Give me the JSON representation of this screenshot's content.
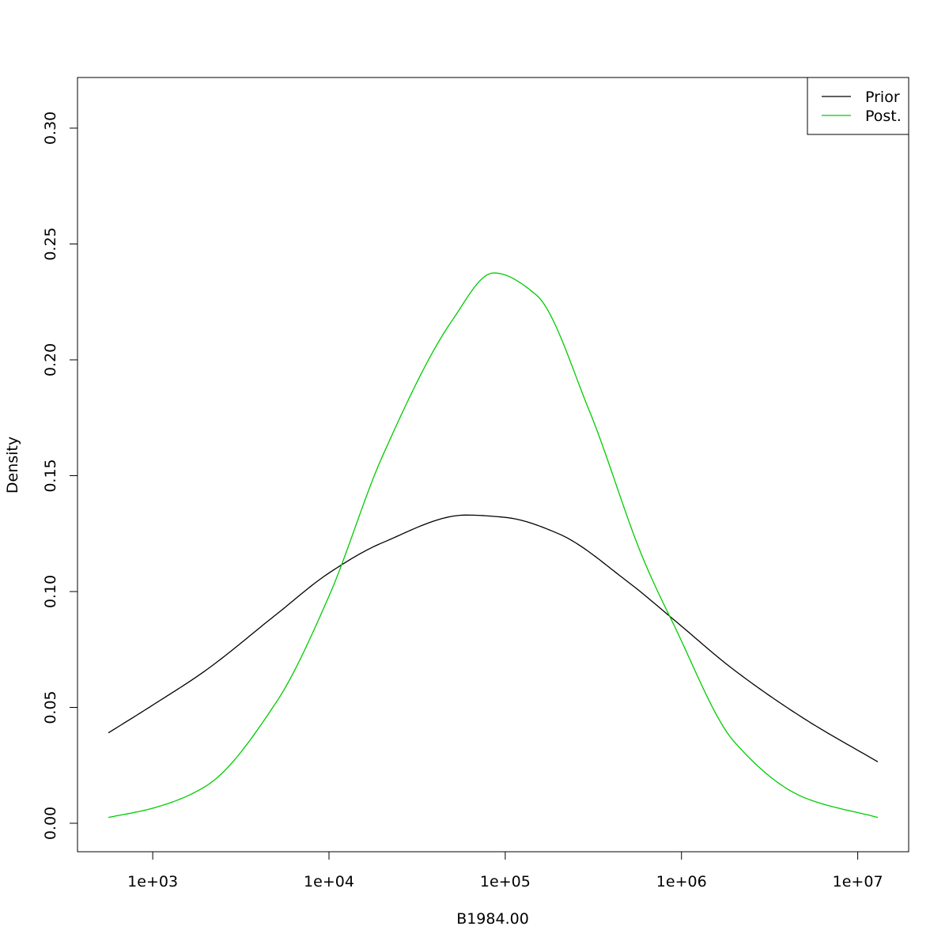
{
  "chart_data": {
    "type": "line",
    "title": "",
    "xlabel": "B1984.00",
    "ylabel": "Density",
    "x_scale": "log10",
    "xlim": [
      560,
      13000000
    ],
    "ylim": [
      -0.012,
      0.3215
    ],
    "x_ticks": [
      1000,
      10000,
      100000,
      1000000,
      10000000
    ],
    "x_tick_labels": [
      "1e+03",
      "1e+04",
      "1e+05",
      "1e+06",
      "1e+07"
    ],
    "y_ticks": [
      0.0,
      0.05,
      0.1,
      0.15,
      0.2,
      0.25,
      0.3
    ],
    "y_tick_labels": [
      "0.00",
      "0.05",
      "0.10",
      "0.15",
      "0.20",
      "0.25",
      "0.30"
    ],
    "grid": false,
    "legend_position": "top-right",
    "series": [
      {
        "name": "Prior",
        "color": "#000000",
        "x": [
          560,
          1000,
          2000,
          5000,
          10000,
          20000,
          60000,
          100000,
          200000,
          500000,
          900000,
          2000000,
          5000000,
          13000000
        ],
        "y": [
          0.039,
          0.051,
          0.066,
          0.09,
          0.108,
          0.121,
          0.133,
          0.132,
          0.125,
          0.104,
          0.088,
          0.066,
          0.045,
          0.0265
        ]
      },
      {
        "name": "Post.",
        "color": "#00cc00",
        "x": [
          560,
          1000,
          2000,
          5000,
          10000,
          20000,
          50000,
          86000,
          150000,
          300000,
          600000,
          900000,
          2000000,
          5000000,
          13000000
        ],
        "y": [
          0.0025,
          0.0065,
          0.016,
          0.052,
          0.098,
          0.158,
          0.217,
          0.2375,
          0.228,
          0.178,
          0.115,
          0.086,
          0.035,
          0.011,
          0.0025
        ]
      }
    ]
  }
}
